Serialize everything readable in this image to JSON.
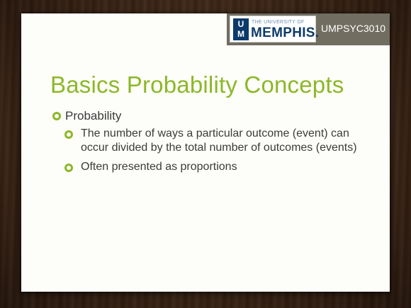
{
  "header": {
    "logo_mark": [
      "U",
      "M"
    ],
    "logo_small": "THE UNIVERSITY OF",
    "logo_big": "MEMPHIS.",
    "course_code": "UMPSYC3010"
  },
  "slide": {
    "title": "Basics Probability Concepts",
    "bullets": [
      {
        "text": "Probability",
        "sub": [
          "The number of ways a particular outcome (event) can occur divided by the total number of outcomes (events)",
          "Often presented as proportions"
        ]
      }
    ]
  },
  "colors": {
    "accent": "#8cb828",
    "header_band": "#716d61",
    "logo_blue": "#0c3a6a",
    "body_text": "#3b3b3b"
  },
  "icons": {
    "bullet": "ring-bullet-icon"
  }
}
